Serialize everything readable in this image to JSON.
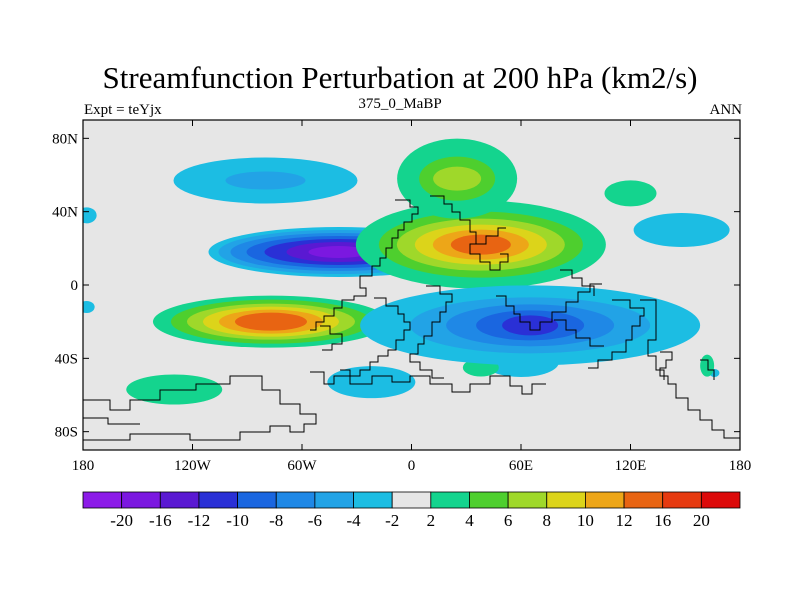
{
  "chart_data": {
    "type": "heatmap",
    "title": "Streamfunction Perturbation at 200 hPa (km2/s)",
    "subtitle_left": "Expt = teYjx",
    "subtitle_center": "375_0_MaBP",
    "subtitle_right": "ANN",
    "xlim": [
      -180,
      180
    ],
    "ylim": [
      -90,
      90
    ],
    "x_ticks": [
      {
        "value": -180,
        "label": "180"
      },
      {
        "value": -120,
        "label": "120W"
      },
      {
        "value": -60,
        "label": "60W"
      },
      {
        "value": 0,
        "label": "0"
      },
      {
        "value": 60,
        "label": "60E"
      },
      {
        "value": 120,
        "label": "120E"
      },
      {
        "value": 180,
        "label": "180"
      }
    ],
    "y_ticks": [
      {
        "value": 80,
        "label": "80N"
      },
      {
        "value": 40,
        "label": "40N"
      },
      {
        "value": 0,
        "label": "0"
      },
      {
        "value": -40,
        "label": "40S"
      },
      {
        "value": -80,
        "label": "80S"
      }
    ],
    "colorbar": {
      "labels": [
        "-20",
        "-16",
        "-12",
        "-10",
        "-8",
        "-6",
        "-4",
        "-2",
        "2",
        "4",
        "6",
        "8",
        "10",
        "12",
        "16",
        "20"
      ],
      "colors": [
        "#8c1be8",
        "#7b18e0",
        "#5a19d2",
        "#2a30d6",
        "#1a66e0",
        "#1f88e6",
        "#22a3e6",
        "#1cbde3",
        "#e6e6e6",
        "#14d48e",
        "#4ecf2e",
        "#9fd82a",
        "#dcd41a",
        "#eda618",
        "#e86412",
        "#e63a10",
        "#dc0a0a"
      ]
    },
    "fields": [
      {
        "name": "atlantic-high",
        "lon": -40,
        "lat": 18,
        "sign": "negative",
        "peak": -20,
        "colors": [
          "#1cbde3",
          "#22a3e6",
          "#1f88e6",
          "#1a66e0",
          "#2a30d6",
          "#5a19d2",
          "#7b18e0"
        ]
      },
      {
        "name": "south-atlantic-high",
        "lon": -77,
        "lat": -20,
        "sign": "positive",
        "peak": 16,
        "colors": [
          "#14d48e",
          "#4ecf2e",
          "#9fd82a",
          "#dcd41a",
          "#eda618",
          "#e86412"
        ]
      },
      {
        "name": "africa-asia-high",
        "lon": 38,
        "lat": 22,
        "sign": "positive",
        "peak": 16,
        "colors": [
          "#14d48e",
          "#4ecf2e",
          "#9fd82a",
          "#dcd41a",
          "#eda618",
          "#e86412"
        ]
      },
      {
        "name": "indian-ocean-low",
        "lon": 65,
        "lat": -22,
        "sign": "negative",
        "peak": -10,
        "colors": [
          "#1cbde3",
          "#22a3e6",
          "#1f88e6",
          "#1a66e0",
          "#2a30d6"
        ]
      },
      {
        "name": "north-pacific-low",
        "lon": -80,
        "lat": 57,
        "sign": "negative",
        "peak": -6,
        "colors": [
          "#1cbde3",
          "#22a3e6"
        ]
      },
      {
        "name": "europe-high",
        "lon": 25,
        "lat": 58,
        "sign": "positive",
        "peak": 8,
        "colors": [
          "#14d48e",
          "#4ecf2e",
          "#9fd82a"
        ]
      },
      {
        "name": "north-pacific-cell",
        "lon": 148,
        "lat": 30,
        "sign": "negative",
        "peak": -4,
        "colors": [
          "#1cbde3"
        ]
      },
      {
        "name": "southern-ocean-high",
        "lon": -130,
        "lat": -57,
        "sign": "positive",
        "peak": 4,
        "colors": [
          "#14d48e"
        ]
      },
      {
        "name": "south-atlantic-low",
        "lon": -22,
        "lat": -53,
        "sign": "negative",
        "peak": -4,
        "colors": [
          "#1cbde3"
        ]
      }
    ]
  }
}
